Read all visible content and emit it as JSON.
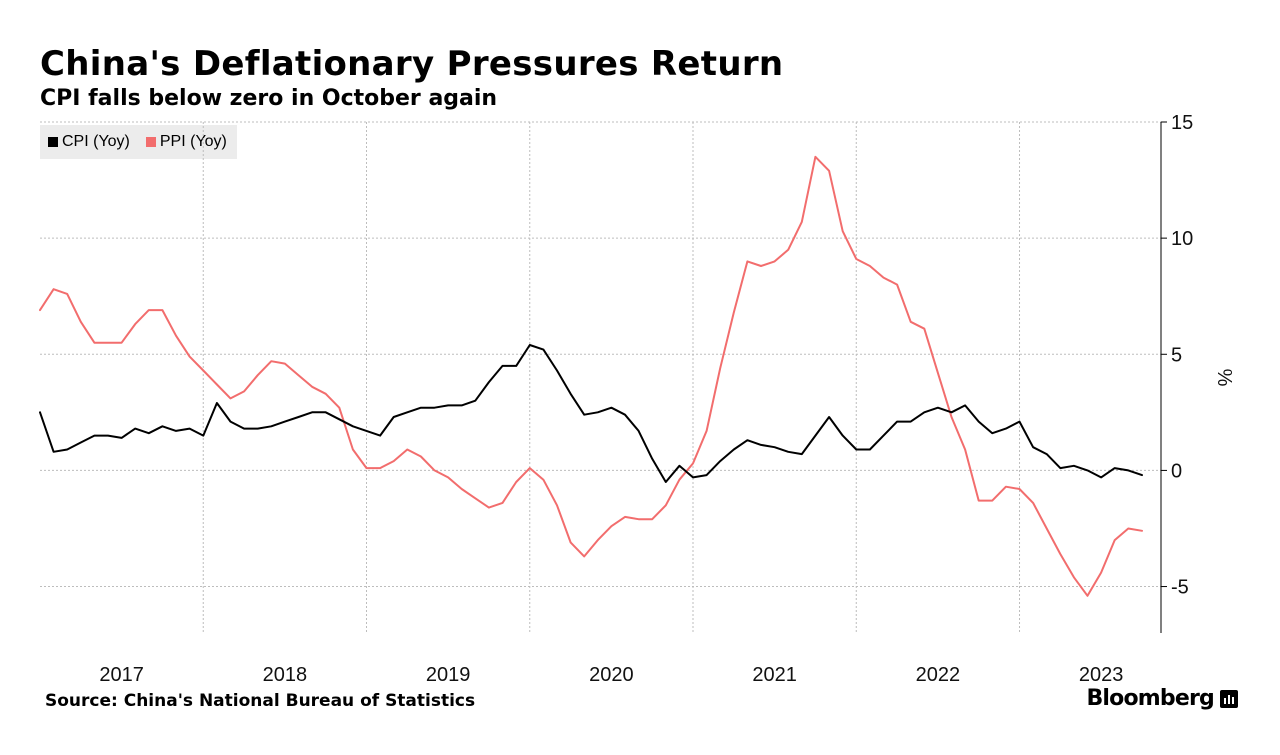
{
  "header": {
    "title": "China's Deflationary Pressures Return",
    "subtitle": "CPI falls below zero in October again"
  },
  "footer": {
    "source": "Source: China's National Bureau of Statistics",
    "brand": "Bloomberg"
  },
  "chart_data": {
    "type": "line",
    "title": "China's Deflationary Pressures Return",
    "subtitle": "CPI falls below zero in October again",
    "xlabel": "",
    "ylabel": "%",
    "x_tick_labels": [
      "2017",
      "2018",
      "2019",
      "2020",
      "2021",
      "2022",
      "2023"
    ],
    "x_range": [
      "2017-01",
      "2023-10"
    ],
    "ylim": [
      -7,
      15
    ],
    "y_ticks": [
      -5,
      0,
      5,
      10,
      15
    ],
    "y_tick_labels": [
      "-5",
      "0",
      "5",
      "10",
      "15"
    ],
    "grid": true,
    "legend_position": "top-left",
    "y_axis_side": "right",
    "series": [
      {
        "name": "CPI (Yoy)",
        "color": "#000000",
        "x": [
          "2017-01",
          "2017-02",
          "2017-03",
          "2017-04",
          "2017-05",
          "2017-06",
          "2017-07",
          "2017-08",
          "2017-09",
          "2017-10",
          "2017-11",
          "2017-12",
          "2018-01",
          "2018-02",
          "2018-03",
          "2018-04",
          "2018-05",
          "2018-06",
          "2018-07",
          "2018-08",
          "2018-09",
          "2018-10",
          "2018-11",
          "2018-12",
          "2019-01",
          "2019-02",
          "2019-03",
          "2019-04",
          "2019-05",
          "2019-06",
          "2019-07",
          "2019-08",
          "2019-09",
          "2019-10",
          "2019-11",
          "2019-12",
          "2020-01",
          "2020-02",
          "2020-03",
          "2020-04",
          "2020-05",
          "2020-06",
          "2020-07",
          "2020-08",
          "2020-09",
          "2020-10",
          "2020-11",
          "2020-12",
          "2021-01",
          "2021-02",
          "2021-03",
          "2021-04",
          "2021-05",
          "2021-06",
          "2021-07",
          "2021-08",
          "2021-09",
          "2021-10",
          "2021-11",
          "2021-12",
          "2022-01",
          "2022-02",
          "2022-03",
          "2022-04",
          "2022-05",
          "2022-06",
          "2022-07",
          "2022-08",
          "2022-09",
          "2022-10",
          "2022-11",
          "2022-12",
          "2023-01",
          "2023-02",
          "2023-03",
          "2023-04",
          "2023-05",
          "2023-06",
          "2023-07",
          "2023-08",
          "2023-09",
          "2023-10"
        ],
        "values": [
          2.5,
          0.8,
          0.9,
          1.2,
          1.5,
          1.5,
          1.4,
          1.8,
          1.6,
          1.9,
          1.7,
          1.8,
          1.5,
          2.9,
          2.1,
          1.8,
          1.8,
          1.9,
          2.1,
          2.3,
          2.5,
          2.5,
          2.2,
          1.9,
          1.7,
          1.5,
          2.3,
          2.5,
          2.7,
          2.7,
          2.8,
          2.8,
          3.0,
          3.8,
          4.5,
          4.5,
          5.4,
          5.2,
          4.3,
          3.3,
          2.4,
          2.5,
          2.7,
          2.4,
          1.7,
          0.5,
          -0.5,
          0.2,
          -0.3,
          -0.2,
          0.4,
          0.9,
          1.3,
          1.1,
          1.0,
          0.8,
          0.7,
          1.5,
          2.3,
          1.5,
          0.9,
          0.9,
          1.5,
          2.1,
          2.1,
          2.5,
          2.7,
          2.5,
          2.8,
          2.1,
          1.6,
          1.8,
          2.1,
          1.0,
          0.7,
          0.1,
          0.2,
          0.0,
          -0.3,
          0.1,
          0.0,
          -0.2
        ]
      },
      {
        "name": "PPI (Yoy)",
        "color": "#f26d6d",
        "x": [
          "2017-01",
          "2017-02",
          "2017-03",
          "2017-04",
          "2017-05",
          "2017-06",
          "2017-07",
          "2017-08",
          "2017-09",
          "2017-10",
          "2017-11",
          "2017-12",
          "2018-01",
          "2018-02",
          "2018-03",
          "2018-04",
          "2018-05",
          "2018-06",
          "2018-07",
          "2018-08",
          "2018-09",
          "2018-10",
          "2018-11",
          "2018-12",
          "2019-01",
          "2019-02",
          "2019-03",
          "2019-04",
          "2019-05",
          "2019-06",
          "2019-07",
          "2019-08",
          "2019-09",
          "2019-10",
          "2019-11",
          "2019-12",
          "2020-01",
          "2020-02",
          "2020-03",
          "2020-04",
          "2020-05",
          "2020-06",
          "2020-07",
          "2020-08",
          "2020-09",
          "2020-10",
          "2020-11",
          "2020-12",
          "2021-01",
          "2021-02",
          "2021-03",
          "2021-04",
          "2021-05",
          "2021-06",
          "2021-07",
          "2021-08",
          "2021-09",
          "2021-10",
          "2021-11",
          "2021-12",
          "2022-01",
          "2022-02",
          "2022-03",
          "2022-04",
          "2022-05",
          "2022-06",
          "2022-07",
          "2022-08",
          "2022-09",
          "2022-10",
          "2022-11",
          "2022-12",
          "2023-01",
          "2023-02",
          "2023-03",
          "2023-04",
          "2023-05",
          "2023-06",
          "2023-07",
          "2023-08",
          "2023-09",
          "2023-10"
        ],
        "values": [
          6.9,
          7.8,
          7.6,
          6.4,
          5.5,
          5.5,
          5.5,
          6.3,
          6.9,
          6.9,
          5.8,
          4.9,
          4.3,
          3.7,
          3.1,
          3.4,
          4.1,
          4.7,
          4.6,
          4.1,
          3.6,
          3.3,
          2.7,
          0.9,
          0.1,
          0.1,
          0.4,
          0.9,
          0.6,
          0.0,
          -0.3,
          -0.8,
          -1.2,
          -1.6,
          -1.4,
          -0.5,
          0.1,
          -0.4,
          -1.5,
          -3.1,
          -3.7,
          -3.0,
          -2.4,
          -2.0,
          -2.1,
          -2.1,
          -1.5,
          -0.4,
          0.3,
          1.7,
          4.4,
          6.8,
          9.0,
          8.8,
          9.0,
          9.5,
          10.7,
          13.5,
          12.9,
          10.3,
          9.1,
          8.8,
          8.3,
          8.0,
          6.4,
          6.1,
          4.2,
          2.3,
          0.9,
          -1.3,
          -1.3,
          -0.7,
          -0.8,
          -1.4,
          -2.5,
          -3.6,
          -4.6,
          -5.4,
          -4.4,
          -3.0,
          -2.5,
          -2.6
        ]
      }
    ]
  }
}
